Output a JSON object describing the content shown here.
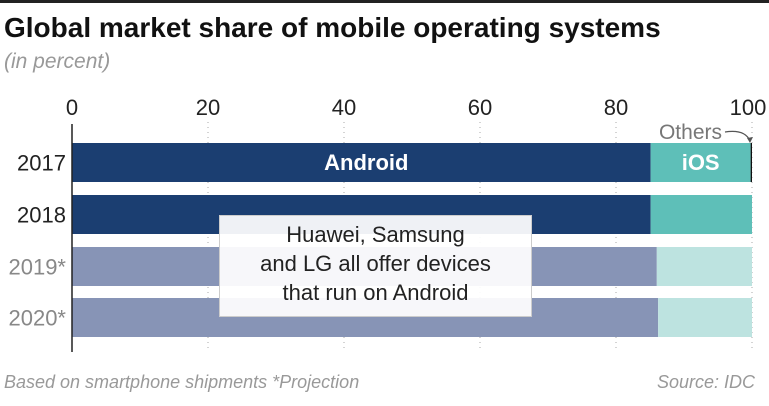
{
  "chart_data": {
    "type": "bar",
    "orientation": "horizontal-stacked",
    "title": "Global market share of mobile operating systems",
    "subtitle": "(in percent)",
    "categories": [
      "2017",
      "2018",
      "2019*",
      "2020*"
    ],
    "projected": [
      false,
      false,
      true,
      true
    ],
    "series": [
      {
        "name": "Android",
        "values": [
          85.1,
          85.1,
          86.0,
          86.2
        ]
      },
      {
        "name": "iOS",
        "values": [
          14.7,
          14.9,
          14.0,
          13.8
        ]
      },
      {
        "name": "Others",
        "values": [
          0.2,
          0,
          0,
          0
        ]
      }
    ],
    "xticks": [
      0,
      20,
      40,
      60,
      80,
      100
    ],
    "xlim": [
      0,
      100
    ],
    "grid": true,
    "labels": {
      "android": "Android",
      "ios": "iOS",
      "others": "Others"
    },
    "annotation": [
      "Huawei, Samsung",
      "and LG all offer devices",
      "that run on Android"
    ],
    "colors": {
      "android": "#1b3e71",
      "ios": "#5ebfb8",
      "android_proj": "#8794b6",
      "ios_proj": "#bde3e0",
      "others": "#111111"
    }
  },
  "footer": {
    "note": "Based on smartphone shipments  *Projection",
    "source": "Source: IDC"
  }
}
